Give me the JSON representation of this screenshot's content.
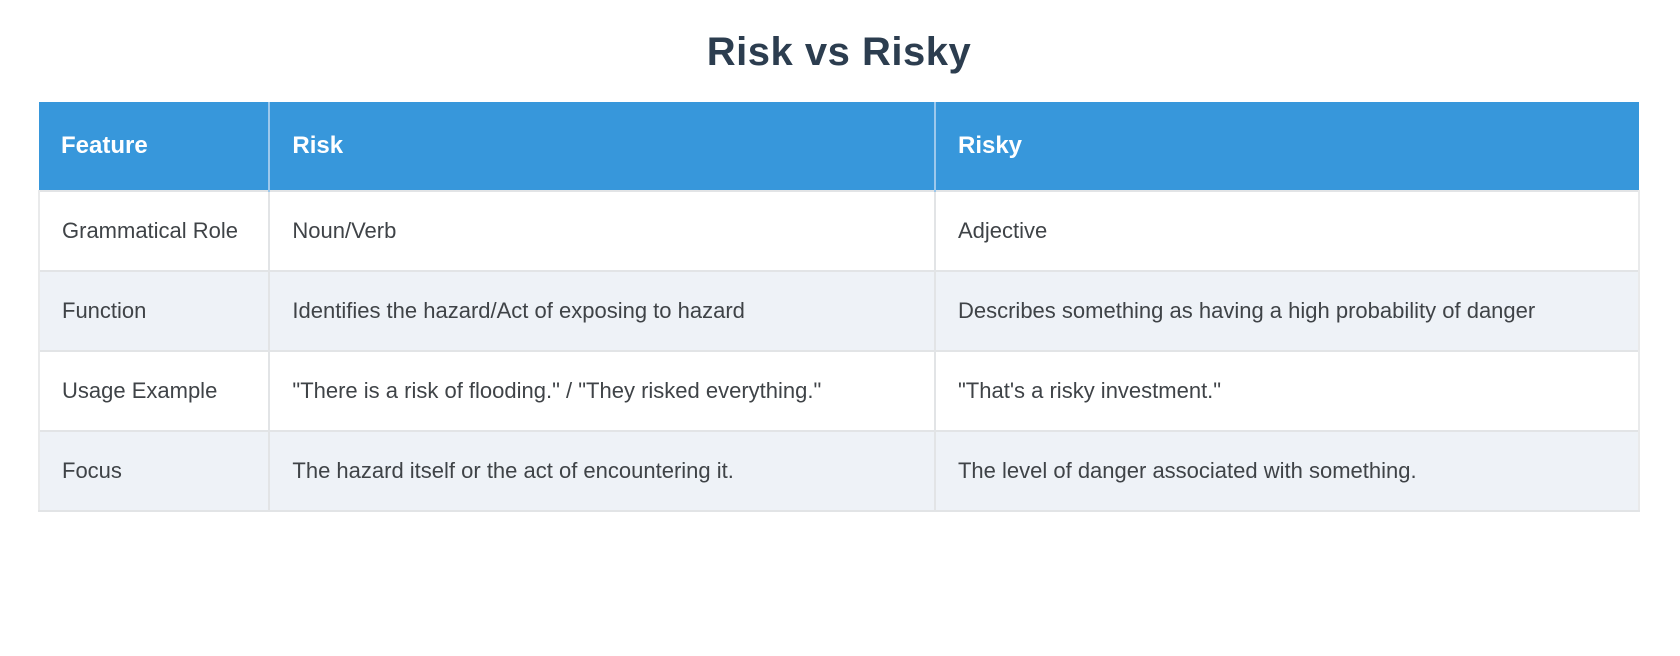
{
  "chart_data": {
    "type": "table",
    "title": "Risk vs Risky",
    "columns": [
      "Feature",
      "Risk",
      "Risky"
    ],
    "rows": [
      [
        "Grammatical Role",
        "Noun/Verb",
        "Adjective"
      ],
      [
        "Function",
        "Identifies the hazard/Act of exposing to hazard",
        "Describes something as having a high probability of danger"
      ],
      [
        "Usage Example",
        "\"There is a risk of flooding.\" / \"They risked everything.\"",
        "\"That's a risky investment.\""
      ],
      [
        "Focus",
        "The hazard itself or the act of encountering it.",
        "The level of danger associated with something."
      ]
    ],
    "layout": {
      "header_position": "top",
      "zebra_striping": true,
      "first_body_row_background": "white"
    }
  },
  "colors": {
    "header_background": "#3797db",
    "header_text": "#ffffff",
    "header_divider": "#9cc8ec",
    "row_background": "#ffffff",
    "row_alt_background": "#eef2f7",
    "grid_border": "#e2e4e6",
    "title_text": "#2c3d4f",
    "body_text": "#3f4347",
    "page_background": "#ffffff"
  }
}
